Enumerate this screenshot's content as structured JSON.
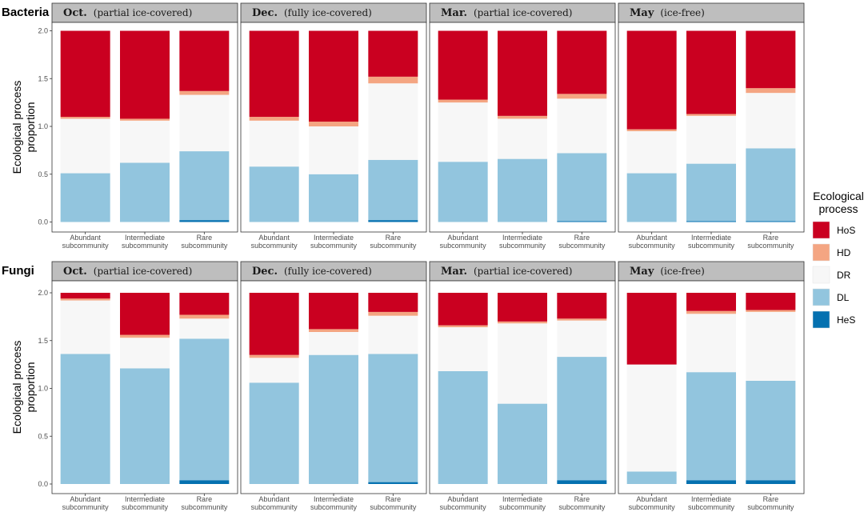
{
  "chart_data": {
    "type": "bar",
    "stacked": true,
    "ylabel": "Ecological process proportion",
    "ylim": [
      0,
      2.0
    ],
    "yticks": [
      "0.0",
      "0.5",
      "1.0",
      "1.5",
      "2.0"
    ],
    "categories": [
      {
        "line1": "Abundant",
        "line2": "subcommunity"
      },
      {
        "line1": "Intermediate",
        "line2": "subcommunity"
      },
      {
        "line1": "Rare",
        "line2": "subcommunity"
      }
    ],
    "legend": {
      "title_line1": "Ecological",
      "title_line2": "process",
      "entries": [
        {
          "key": "HoS",
          "color": "#ca0020"
        },
        {
          "key": "HD",
          "color": "#f4a582"
        },
        {
          "key": "DR",
          "color": "#f7f7f7"
        },
        {
          "key": "DL",
          "color": "#92c5de"
        },
        {
          "key": "HeS",
          "color": "#0571b0"
        }
      ]
    },
    "stack_order_bottom_to_top": [
      "HeS",
      "DL",
      "DR",
      "HD",
      "HoS"
    ],
    "rows": [
      {
        "title": "Bacteria",
        "panels": [
          {
            "month": "Oct.",
            "condition": "(partial ice-covered)",
            "bars": [
              {
                "HeS": 0.0,
                "DL": 0.51,
                "DR": 0.57,
                "HD": 0.02,
                "HoS": 0.9
              },
              {
                "HeS": 0.0,
                "DL": 0.62,
                "DR": 0.44,
                "HD": 0.02,
                "HoS": 0.92
              },
              {
                "HeS": 0.02,
                "DL": 0.72,
                "DR": 0.59,
                "HD": 0.04,
                "HoS": 0.63
              }
            ]
          },
          {
            "month": "Dec.",
            "condition": "(fully ice-covered)",
            "bars": [
              {
                "HeS": 0.0,
                "DL": 0.58,
                "DR": 0.48,
                "HD": 0.04,
                "HoS": 0.9
              },
              {
                "HeS": 0.0,
                "DL": 0.5,
                "DR": 0.5,
                "HD": 0.05,
                "HoS": 0.95
              },
              {
                "HeS": 0.02,
                "DL": 0.63,
                "DR": 0.8,
                "HD": 0.07,
                "HoS": 0.48
              }
            ]
          },
          {
            "month": "Mar.",
            "condition": "(partial ice-covered)",
            "bars": [
              {
                "HeS": 0.0,
                "DL": 0.63,
                "DR": 0.62,
                "HD": 0.03,
                "HoS": 0.72
              },
              {
                "HeS": 0.0,
                "DL": 0.66,
                "DR": 0.42,
                "HD": 0.03,
                "HoS": 0.89
              },
              {
                "HeS": 0.01,
                "DL": 0.71,
                "DR": 0.57,
                "HD": 0.05,
                "HoS": 0.66
              }
            ]
          },
          {
            "month": "May",
            "condition": "(ice-free)",
            "bars": [
              {
                "HeS": 0.0,
                "DL": 0.51,
                "DR": 0.44,
                "HD": 0.02,
                "HoS": 1.03
              },
              {
                "HeS": 0.01,
                "DL": 0.6,
                "DR": 0.5,
                "HD": 0.02,
                "HoS": 0.87
              },
              {
                "HeS": 0.01,
                "DL": 0.76,
                "DR": 0.58,
                "HD": 0.05,
                "HoS": 0.6
              }
            ]
          }
        ]
      },
      {
        "title": "Fungi",
        "panels": [
          {
            "month": "Oct.",
            "condition": "(partial ice-covered)",
            "bars": [
              {
                "HeS": 0.0,
                "DL": 1.36,
                "DR": 0.56,
                "HD": 0.02,
                "HoS": 0.06
              },
              {
                "HeS": 0.0,
                "DL": 1.21,
                "DR": 0.32,
                "HD": 0.03,
                "HoS": 0.44
              },
              {
                "HeS": 0.04,
                "DL": 1.48,
                "DR": 0.21,
                "HD": 0.04,
                "HoS": 0.23
              }
            ]
          },
          {
            "month": "Dec.",
            "condition": "(fully ice-covered)",
            "bars": [
              {
                "HeS": 0.0,
                "DL": 1.06,
                "DR": 0.26,
                "HD": 0.03,
                "HoS": 0.65
              },
              {
                "HeS": 0.0,
                "DL": 1.35,
                "DR": 0.24,
                "HD": 0.03,
                "HoS": 0.38
              },
              {
                "HeS": 0.02,
                "DL": 1.34,
                "DR": 0.4,
                "HD": 0.04,
                "HoS": 0.2
              }
            ]
          },
          {
            "month": "Mar.",
            "condition": "(partial ice-covered)",
            "bars": [
              {
                "HeS": 0.0,
                "DL": 1.18,
                "DR": 0.46,
                "HD": 0.02,
                "HoS": 0.34
              },
              {
                "HeS": 0.0,
                "DL": 0.84,
                "DR": 0.84,
                "HD": 0.02,
                "HoS": 0.3
              },
              {
                "HeS": 0.04,
                "DL": 1.29,
                "DR": 0.38,
                "HD": 0.02,
                "HoS": 0.27
              }
            ]
          },
          {
            "month": "May",
            "condition": "(ice-free)",
            "bars": [
              {
                "HeS": 0.0,
                "DL": 0.13,
                "DR": 1.12,
                "HD": 0.0,
                "HoS": 0.75
              },
              {
                "HeS": 0.04,
                "DL": 1.13,
                "DR": 0.61,
                "HD": 0.03,
                "HoS": 0.19
              },
              {
                "HeS": 0.04,
                "DL": 1.04,
                "DR": 0.72,
                "HD": 0.02,
                "HoS": 0.18
              }
            ]
          }
        ]
      }
    ]
  }
}
